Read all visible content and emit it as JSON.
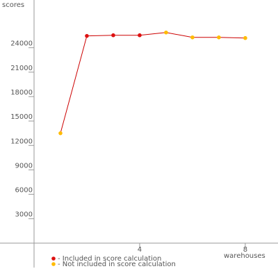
{
  "chart_data": {
    "type": "line",
    "y_label": "scores",
    "x_label": "warehouses",
    "x": [
      1,
      2,
      3,
      4,
      5,
      6,
      7,
      8
    ],
    "values": [
      13500,
      25450,
      25530,
      25530,
      25870,
      25270,
      25270,
      25190
    ],
    "included": [
      false,
      true,
      true,
      true,
      false,
      false,
      false,
      false
    ],
    "line_color": "#cc0000",
    "legend": [
      {
        "label": "- Included in score calculation",
        "color": "#dd1111"
      },
      {
        "label": "- Not included in score calculation",
        "color": "#ffbb00"
      }
    ],
    "xlim": [
      0,
      9.24
    ],
    "xticks": [
      4,
      8
    ],
    "ylim": [
      -3000,
      29860
    ],
    "yticks": [
      3000,
      6000,
      9000,
      12000,
      15000,
      18000,
      21000,
      24000
    ]
  }
}
